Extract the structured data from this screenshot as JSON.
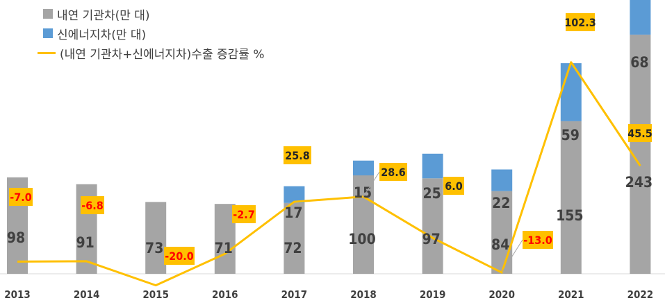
{
  "chart_data": {
    "type": "bar+line",
    "categories": [
      "2013",
      "2014",
      "2015",
      "2016",
      "2017",
      "2018",
      "2019",
      "2020",
      "2021",
      "2022"
    ],
    "series": [
      {
        "name": "내연 기관차(만 대)",
        "kind": "bar",
        "color": "#a5a5a5",
        "values": [
          98,
          91,
          73,
          71,
          72,
          100,
          97,
          84,
          155,
          243
        ]
      },
      {
        "name": "신에너지차(만 대)",
        "kind": "bar",
        "color": "#5b9bd5",
        "values": [
          null,
          null,
          null,
          null,
          17,
          15,
          25,
          22,
          59,
          68
        ]
      },
      {
        "name": "(내연 기관차+신에너지차)수출 증감률 %",
        "kind": "line",
        "color": "#ffc000",
        "values": [
          -7.0,
          -6.8,
          -20.0,
          -2.7,
          25.8,
          28.6,
          6.0,
          -13.0,
          102.3,
          45.5
        ]
      }
    ],
    "line_labels": [
      "-7.0",
      "-6.8",
      "-20.0",
      "-2.7",
      "25.8",
      "28.6",
      "6.0",
      "-13.0",
      "102.3",
      "45.5"
    ],
    "stacked": true,
    "bar_ylim": [
      0,
      350
    ],
    "line_ylim": [
      -40,
      110
    ],
    "grid": false,
    "legend_position": "top-left"
  }
}
